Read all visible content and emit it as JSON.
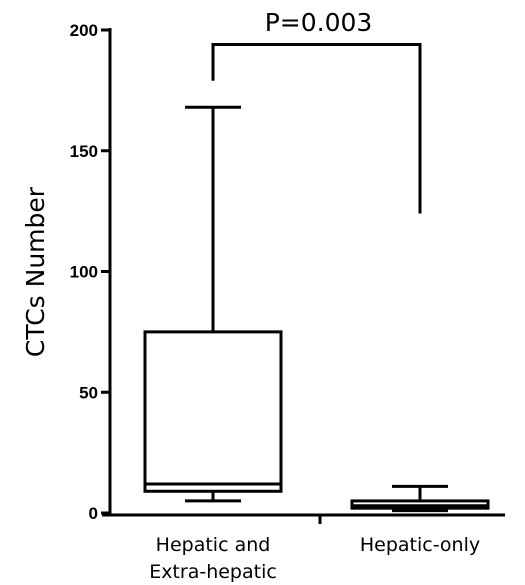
{
  "chart_data": {
    "type": "box",
    "title": "",
    "xlabel": "",
    "ylabel": "CTCs Number",
    "ylim": [
      0,
      200
    ],
    "yticks": [
      0,
      50,
      100,
      150,
      200
    ],
    "grid": false,
    "categories": [
      "Hepatic and\nExtra-hepatic",
      "Hepatic-only"
    ],
    "boxes": [
      {
        "category": "Hepatic and\nExtra-hepatic",
        "min": 5,
        "q1": 9,
        "median": 12,
        "q3": 75,
        "max": 168
      },
      {
        "category": "Hepatic-only",
        "min": 1,
        "q1": 2,
        "median": 3,
        "q3": 5,
        "max": 11
      }
    ],
    "annotation": {
      "text": "P=0.003",
      "bracket_left_y": 179,
      "bracket_right_y": 124,
      "bracket_top_y": 194
    }
  }
}
